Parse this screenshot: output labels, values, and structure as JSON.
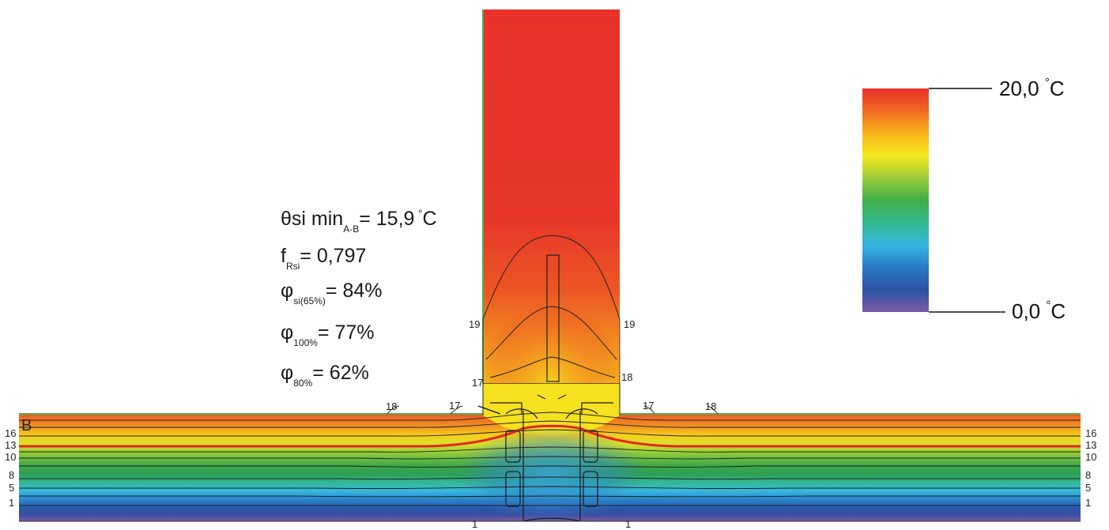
{
  "results": {
    "theta": {
      "symbol": "θ",
      "name": "si min",
      "sub": "A-B",
      "value": "= 15,9",
      "unit_deg": "°",
      "unit": "C"
    },
    "frsi": {
      "symbol": "f",
      "sub": "Rsi",
      "value": "= 0,797"
    },
    "phi_si": {
      "symbol": "φ",
      "sub": "si(65%)",
      "value": "= 84%"
    },
    "phi_100": {
      "symbol": "φ",
      "sub": "100%",
      "value": "= 77%"
    },
    "phi_80": {
      "symbol": "φ",
      "sub": "80%",
      "value": "= 62%"
    }
  },
  "scale": {
    "max_value": "20,0",
    "min_value": "0,0",
    "deg": "°",
    "unit": "C",
    "colors": [
      "#e8312a",
      "#f06a22",
      "#f7b21a",
      "#f5e81e",
      "#9ccc3a",
      "#3fae48",
      "#34b98e",
      "#35b6e2",
      "#2a7bc7",
      "#2c53a3",
      "#7d5aa6"
    ]
  },
  "point_label": "B",
  "isotherm_labels": {
    "wall_left_19": "19",
    "wall_right_19": "19",
    "wall_left_17": "17",
    "wall_right_18": "18",
    "slab_left_18": "18",
    "slab_left_17": "17",
    "slab_right_17": "17",
    "slab_right_18": "18",
    "bottom_left_1": "1",
    "bottom_right_1": "1"
  },
  "edge_labels": [
    "16",
    "13",
    "10",
    "8",
    "5",
    "1"
  ]
}
